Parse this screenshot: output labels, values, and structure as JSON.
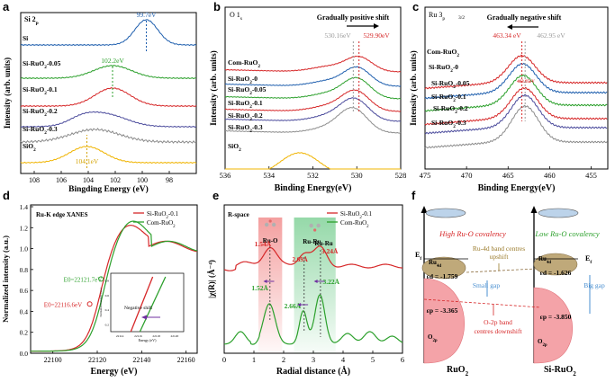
{
  "chart_data": [
    {
      "panel": "a",
      "type": "line",
      "title": "Si 2p",
      "xlabel": "Bingding Energy (eV)",
      "ylabel": "Intensity (arb. units)",
      "xlim": [
        109,
        96
      ],
      "xticks": [
        "108",
        "106",
        "104",
        "102",
        "100",
        "98"
      ],
      "series": [
        {
          "name": "Si",
          "color": "#1f5fae"
        },
        {
          "name": "Si-RuO2-0.05",
          "color": "#2ca02c"
        },
        {
          "name": "Si-RuO2-0.1",
          "color": "#d62728"
        },
        {
          "name": "Si-RuO2-0.2",
          "color": "#4b4b9c"
        },
        {
          "name": "Si-RuO2-0.3",
          "color": "#8c8c8c"
        },
        {
          "name": "SiO2",
          "color": "#f0b400"
        }
      ],
      "annotations": [
        {
          "text": "99.7eV",
          "x": 99.7,
          "color": "#1f5fae"
        },
        {
          "text": "102.2eV",
          "x": 102.2,
          "color": "#2ca02c"
        },
        {
          "text": "104.1eV",
          "x": 104.1,
          "color": "#d4a300"
        }
      ]
    },
    {
      "panel": "b",
      "type": "line",
      "title": "O 1s",
      "xlabel": "Binding Energy(eV)",
      "ylabel": "Intensity (arb. units)",
      "xlim": [
        536,
        528
      ],
      "xticks": [
        "536",
        "534",
        "532",
        "530",
        "528"
      ],
      "series": [
        {
          "name": "Com-RuO2",
          "color": "#d62728"
        },
        {
          "name": "Si-RuO2-0",
          "color": "#1f5fae"
        },
        {
          "name": "Si-RuO2-0.05",
          "color": "#2ca02c"
        },
        {
          "name": "Si-RuO2-0.1",
          "color": "#d62728"
        },
        {
          "name": "Si-RuO2-0.2",
          "color": "#4b4b9c"
        },
        {
          "name": "Si-RuO2-0.3",
          "color": "#8c8c8c"
        },
        {
          "name": "SiO2",
          "color": "#f0b400"
        }
      ],
      "annotations": [
        {
          "text": "Gradually positive shift"
        },
        {
          "text": "530.16eV",
          "x": 530.16,
          "color": "#9a9a9a"
        },
        {
          "text": "529.90eV",
          "x": 529.9,
          "color": "#d62728"
        }
      ]
    },
    {
      "panel": "c",
      "type": "line",
      "title": "Ru 3p3/2",
      "xlabel": "Binding Energy(eV)",
      "ylabel": "Intensity (arb. units)",
      "xlim": [
        475,
        453
      ],
      "xticks": [
        "475",
        "470",
        "465",
        "460",
        "455"
      ],
      "series": [
        {
          "name": "Com-RuO2",
          "color": "#d62728"
        },
        {
          "name": "Si-RuO2-0",
          "color": "#1f5fae"
        },
        {
          "name": "Si-RuO2-0.05",
          "color": "#2ca02c"
        },
        {
          "name": "Si-RuO2-0.1",
          "color": "#d62728"
        },
        {
          "name": "Si-RuO2-0.2",
          "color": "#4b4b9c"
        },
        {
          "name": "Si-RuO2-0.3",
          "color": "#8c8c8c"
        }
      ],
      "annotations": [
        {
          "text": "Gradually negative shift"
        },
        {
          "text": "463.34 eV",
          "x": 463.34,
          "color": "#d62728"
        },
        {
          "text": "462.95 eV",
          "x": 462.95,
          "color": "#9a9a9a"
        },
        {
          "text": "463.05eV",
          "x": 463.05,
          "color": "#d62728"
        }
      ]
    },
    {
      "panel": "d",
      "type": "line",
      "title": "Ru-K edge XANES",
      "xlabel": "Energy (eV)",
      "ylabel": "Normalized intensity (a.u.)",
      "xlim": [
        22090,
        22165
      ],
      "ylim": [
        0,
        1.4
      ],
      "xticks": [
        "22100",
        "22120",
        "22140",
        "22160"
      ],
      "yticks": [
        "0.0",
        "0.2",
        "0.4",
        "0.6",
        "0.8",
        "1.0",
        "1.2",
        "1.4"
      ],
      "series": [
        {
          "name": "Si-RuO2-0.1",
          "color": "#d62728"
        },
        {
          "name": "Com-RuO2",
          "color": "#2ca02c"
        }
      ],
      "annotations": [
        {
          "text": "E0=22121.7eV",
          "x": 22121.7,
          "color": "#2ca02c"
        },
        {
          "text": "E0=22116.6eV",
          "x": 22116.6,
          "color": "#d62728"
        },
        {
          "text": "Negative shift"
        }
      ],
      "inset": {
        "xlabel": "Energy (eV)",
        "ylabel": "Normalized intensity (a.u.)",
        "xticks": [
          "22114",
          "22116",
          "22118",
          "22120"
        ],
        "yticks": [
          "0.2",
          "0.4",
          "0.6",
          "0.8"
        ]
      }
    },
    {
      "panel": "e",
      "type": "line",
      "title": "R-space",
      "xlabel": "Radial distance (Å)",
      "ylabel": "|χ(R)| (Å⁻⁴)",
      "xlim": [
        0,
        6
      ],
      "xticks": [
        "0",
        "1",
        "2",
        "3",
        "4",
        "5",
        "6"
      ],
      "series": [
        {
          "name": "Si-RuO2-0.1",
          "color": "#d62728"
        },
        {
          "name": "Com-RuO2",
          "color": "#2ca02c"
        }
      ],
      "annotations": [
        {
          "text": "1.54Å",
          "x": 1.54,
          "color": "#d62728"
        },
        {
          "text": "Ru-O",
          "x": 1.54
        },
        {
          "text": "2.69Å",
          "x": 2.69,
          "color": "#d62728"
        },
        {
          "text": "Ru-Ru",
          "x": 3.0
        },
        {
          "text": "Ru-Ru",
          "x": 3.22
        },
        {
          "text": "3.24Å",
          "x": 3.24,
          "color": "#d62728"
        },
        {
          "text": "1.52Å",
          "x": 1.52,
          "color": "#2ca02c"
        },
        {
          "text": "2.66Å",
          "x": 2.66,
          "color": "#2ca02c"
        },
        {
          "text": "3.22Å",
          "x": 3.22,
          "color": "#2ca02c"
        }
      ]
    },
    {
      "panel": "f",
      "type": "diagram",
      "labels": {
        "left_title": "High Ru-O covalency",
        "right_title": "Low Ru-O covalency",
        "ef": "Ef",
        "ru4d": "Ru4d",
        "o2p": "O2p",
        "ed_left": "εd = -1.759",
        "ed_right": "εd = -1.626",
        "ep_left": "εp = -3.365",
        "ep_right": "εp = -3.850",
        "ru4d_shift": "Ru-4d band centres upshift",
        "small_gap": "Small gap",
        "big_gap": "Big gap",
        "o2p_shift": "O-2p band centres downshift",
        "left_label": "RuO2",
        "right_label": "Si-RuO2"
      }
    }
  ],
  "panel_letters": [
    "a",
    "b",
    "c",
    "d",
    "e",
    "f"
  ]
}
